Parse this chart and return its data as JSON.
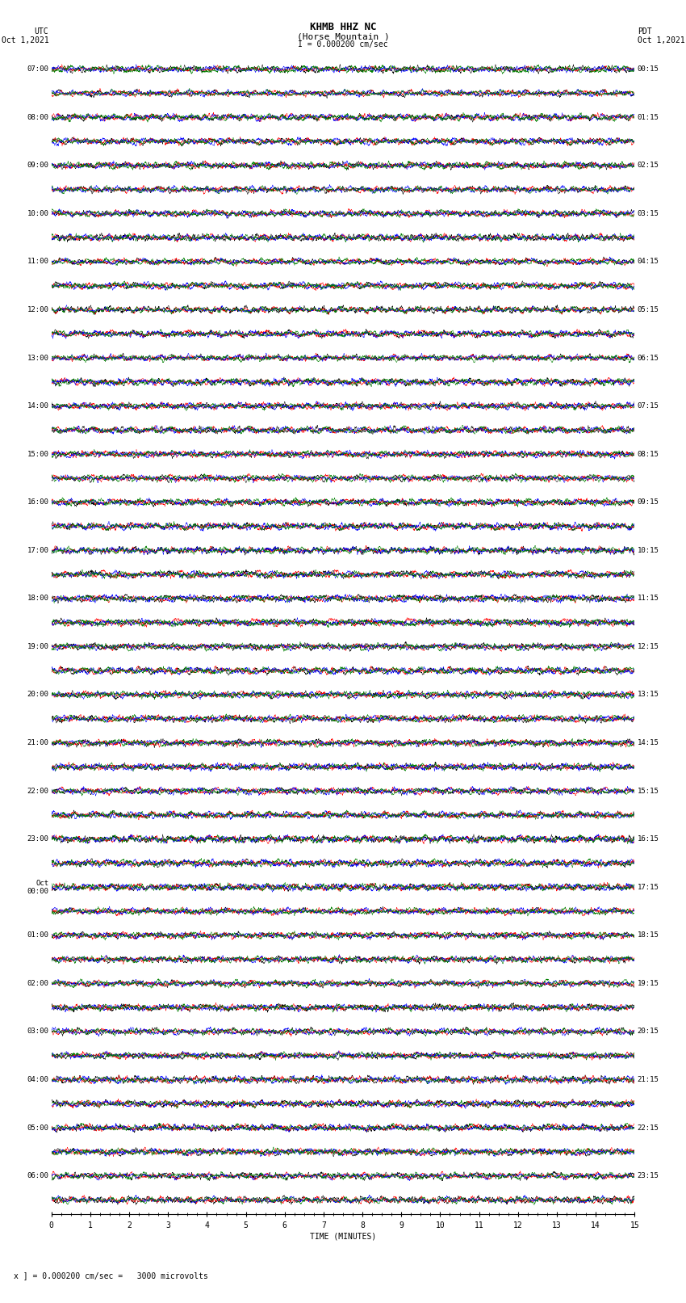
{
  "title_line1": "KHMB HHZ NC",
  "title_line2": "(Horse Mountain )",
  "scale_text": "I = 0.000200 cm/sec",
  "left_label_top": "UTC",
  "left_label_date": "Oct 1,2021",
  "right_label_top": "PDT",
  "right_label_date": "Oct 1,2021",
  "bottom_label": "TIME (MINUTES)",
  "scale_bar_label": "x ] = 0.000200 cm/sec =   3000 microvolts",
  "left_times_utc": [
    "07:00",
    "08:00",
    "09:00",
    "10:00",
    "11:00",
    "12:00",
    "13:00",
    "14:00",
    "15:00",
    "16:00",
    "17:00",
    "18:00",
    "19:00",
    "20:00",
    "21:00",
    "22:00",
    "23:00",
    "Oct\n00:00",
    "01:00",
    "02:00",
    "03:00",
    "04:00",
    "05:00",
    "06:00"
  ],
  "right_times_pdt": [
    "00:15",
    "01:15",
    "02:15",
    "03:15",
    "04:15",
    "05:15",
    "06:15",
    "07:15",
    "08:15",
    "09:15",
    "10:15",
    "11:15",
    "12:15",
    "13:15",
    "14:15",
    "15:15",
    "16:15",
    "17:15",
    "18:15",
    "19:15",
    "20:15",
    "21:15",
    "22:15",
    "23:15"
  ],
  "num_rows": 48,
  "traces_per_row": 4,
  "colors_order": [
    "black",
    "red",
    "blue",
    "green"
  ],
  "bg_color": "#ffffff",
  "fig_width": 8.5,
  "fig_height": 16.13,
  "dpi": 100,
  "x_tick_positions": [
    0,
    1,
    2,
    3,
    4,
    5,
    6,
    7,
    8,
    9,
    10,
    11,
    12,
    13,
    14,
    15
  ],
  "amplitude_scale": 0.42,
  "noise_seed": 12345,
  "N_samples": 3000
}
